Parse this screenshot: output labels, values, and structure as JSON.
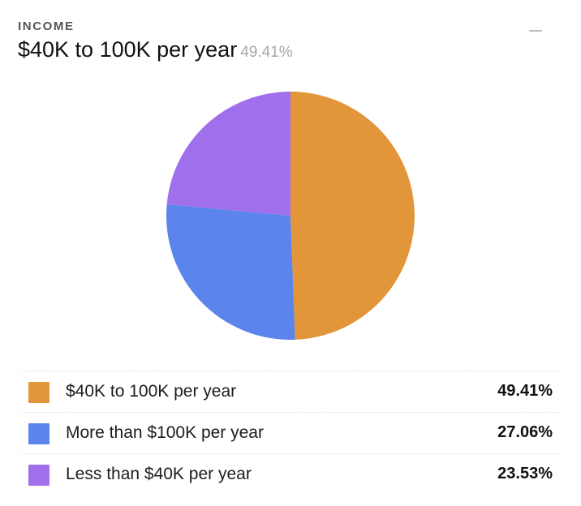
{
  "header": {
    "section_label": "INCOME",
    "selected_label": "$40K to 100K per year",
    "selected_percent": "49.41%"
  },
  "colors": {
    "orange": "#E3953A",
    "blue": "#5B84EC",
    "purple": "#A06FEC"
  },
  "chart_data": {
    "type": "pie",
    "title": "",
    "categories": [
      "$40K to 100K per year",
      "More than $100K per year",
      "Less than $40K per year"
    ],
    "values": [
      49.41,
      27.06,
      23.53
    ],
    "colors": [
      "#E3953A",
      "#5B84EC",
      "#A06FEC"
    ],
    "start": "top",
    "direction": "clockwise",
    "legend_position": "bottom"
  },
  "legend": {
    "items": [
      {
        "label": "$40K to 100K per year",
        "percent": "49.41%",
        "color": "#E3953A"
      },
      {
        "label": "More than $100K per year",
        "percent": "27.06%",
        "color": "#5B84EC"
      },
      {
        "label": "Less than $40K per year",
        "percent": "23.53%",
        "color": "#A06FEC"
      }
    ]
  }
}
